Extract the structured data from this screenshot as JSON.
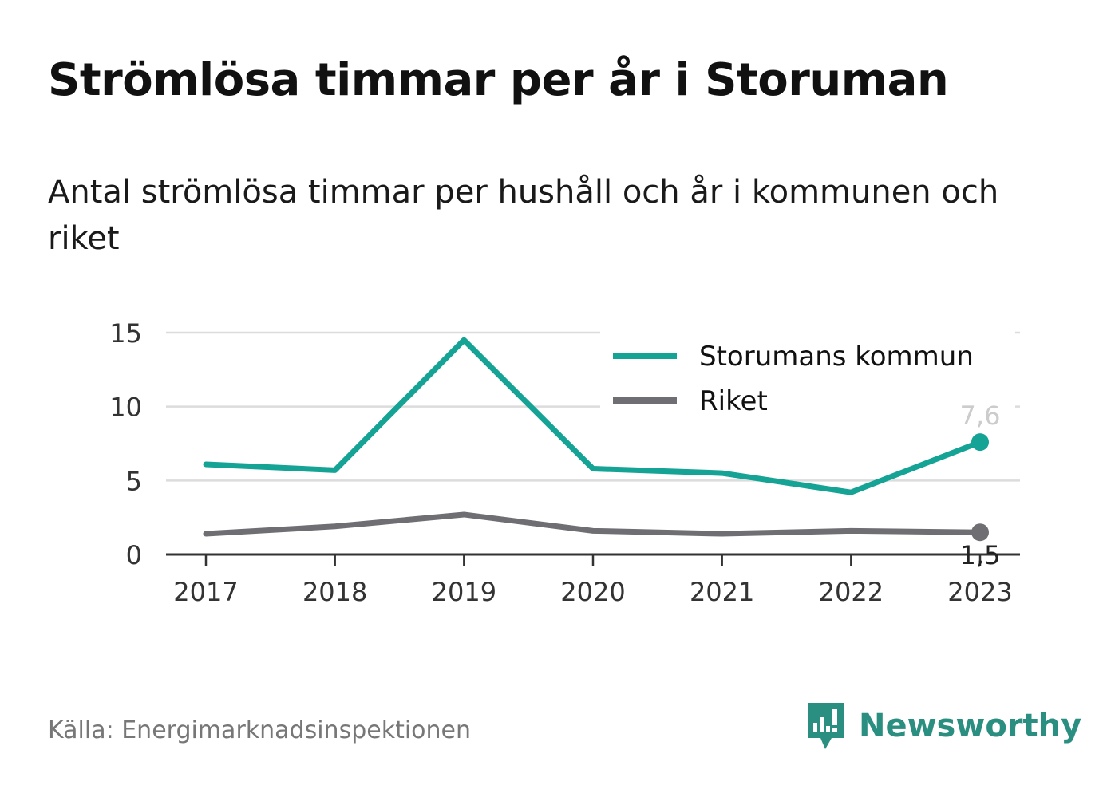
{
  "header": {
    "title": "Strömlösa timmar per år i Storuman",
    "subtitle": "Antal strömlösa timmar per hushåll och år i kommunen och riket"
  },
  "chart_data": {
    "type": "line",
    "x": [
      "2017",
      "2018",
      "2019",
      "2020",
      "2021",
      "2022",
      "2023"
    ],
    "ylim": [
      0,
      15
    ],
    "yticks": [
      "0",
      "5",
      "10",
      "15"
    ],
    "grid": true,
    "legend_position": "top-right",
    "series": [
      {
        "name": "Storumans kommun",
        "color": "#14a394",
        "values": [
          6.1,
          5.7,
          14.5,
          5.8,
          5.5,
          4.2,
          7.6
        ],
        "end_label": "7,6",
        "end_label_color": "#cccccc"
      },
      {
        "name": "Riket",
        "color": "#6f6e73",
        "values": [
          1.4,
          1.9,
          2.7,
          1.6,
          1.4,
          1.6,
          1.5
        ],
        "end_label": "1,5",
        "end_label_color": "#222222"
      }
    ]
  },
  "footer": {
    "source": "Källa: Energimarknadsinspektionen",
    "brand": "Newsworthy",
    "brand_icon": "newsworthy-logo-icon",
    "brand_color": "#2a8f80"
  }
}
